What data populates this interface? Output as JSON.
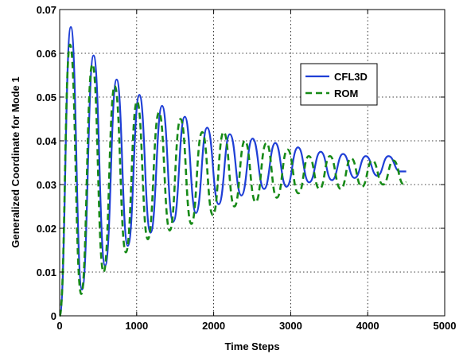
{
  "chart_data": {
    "type": "line",
    "title": "",
    "xlabel": "Time Steps",
    "ylabel": "Generalized Coordinate for Mode 1",
    "xlim": [
      0,
      5000
    ],
    "ylim": [
      0,
      0.07
    ],
    "x_ticks": [
      "0",
      "1000",
      "2000",
      "3000",
      "4000",
      "5000"
    ],
    "y_ticks": [
      "0",
      "0.01",
      "0.02",
      "0.03",
      "0.04",
      "0.05",
      "0.06",
      "0.07"
    ],
    "grid": true,
    "legend_position": "top-right",
    "series": [
      {
        "name": "CFL3D",
        "color": "#1f3fd6",
        "style": "solid",
        "x": [
          0,
          145,
          290,
          440,
          590,
          740,
          885,
          1035,
          1180,
          1330,
          1475,
          1625,
          1770,
          1915,
          2065,
          2210,
          2360,
          2505,
          2655,
          2800,
          2945,
          3095,
          3240,
          3390,
          3535,
          3680,
          3830,
          3975,
          4125,
          4270,
          4420,
          4500
        ],
        "y": [
          0.0,
          0.066,
          0.006,
          0.0595,
          0.0115,
          0.054,
          0.016,
          0.0505,
          0.019,
          0.048,
          0.0215,
          0.0455,
          0.0235,
          0.043,
          0.0255,
          0.0415,
          0.0275,
          0.0405,
          0.029,
          0.0395,
          0.0295,
          0.0385,
          0.0305,
          0.0375,
          0.031,
          0.037,
          0.0315,
          0.0365,
          0.032,
          0.0365,
          0.033,
          0.033
        ]
      },
      {
        "name": "ROM",
        "color": "#178a17",
        "style": "dashed",
        "x": [
          0,
          135,
          280,
          425,
          570,
          715,
          860,
          1005,
          1145,
          1290,
          1430,
          1570,
          1710,
          1850,
          1990,
          2130,
          2270,
          2405,
          2545,
          2685,
          2820,
          2960,
          3100,
          3235,
          3375,
          3510,
          3650,
          3785,
          3925,
          4060,
          4200,
          4335,
          4470,
          4500
        ],
        "y": [
          0.0,
          0.062,
          0.005,
          0.0575,
          0.01,
          0.0525,
          0.0145,
          0.049,
          0.0175,
          0.0465,
          0.0195,
          0.045,
          0.021,
          0.042,
          0.023,
          0.042,
          0.025,
          0.04,
          0.026,
          0.0395,
          0.027,
          0.038,
          0.028,
          0.0365,
          0.029,
          0.0365,
          0.029,
          0.036,
          0.0295,
          0.0355,
          0.03,
          0.0355,
          0.03,
          0.0305
        ]
      }
    ]
  }
}
